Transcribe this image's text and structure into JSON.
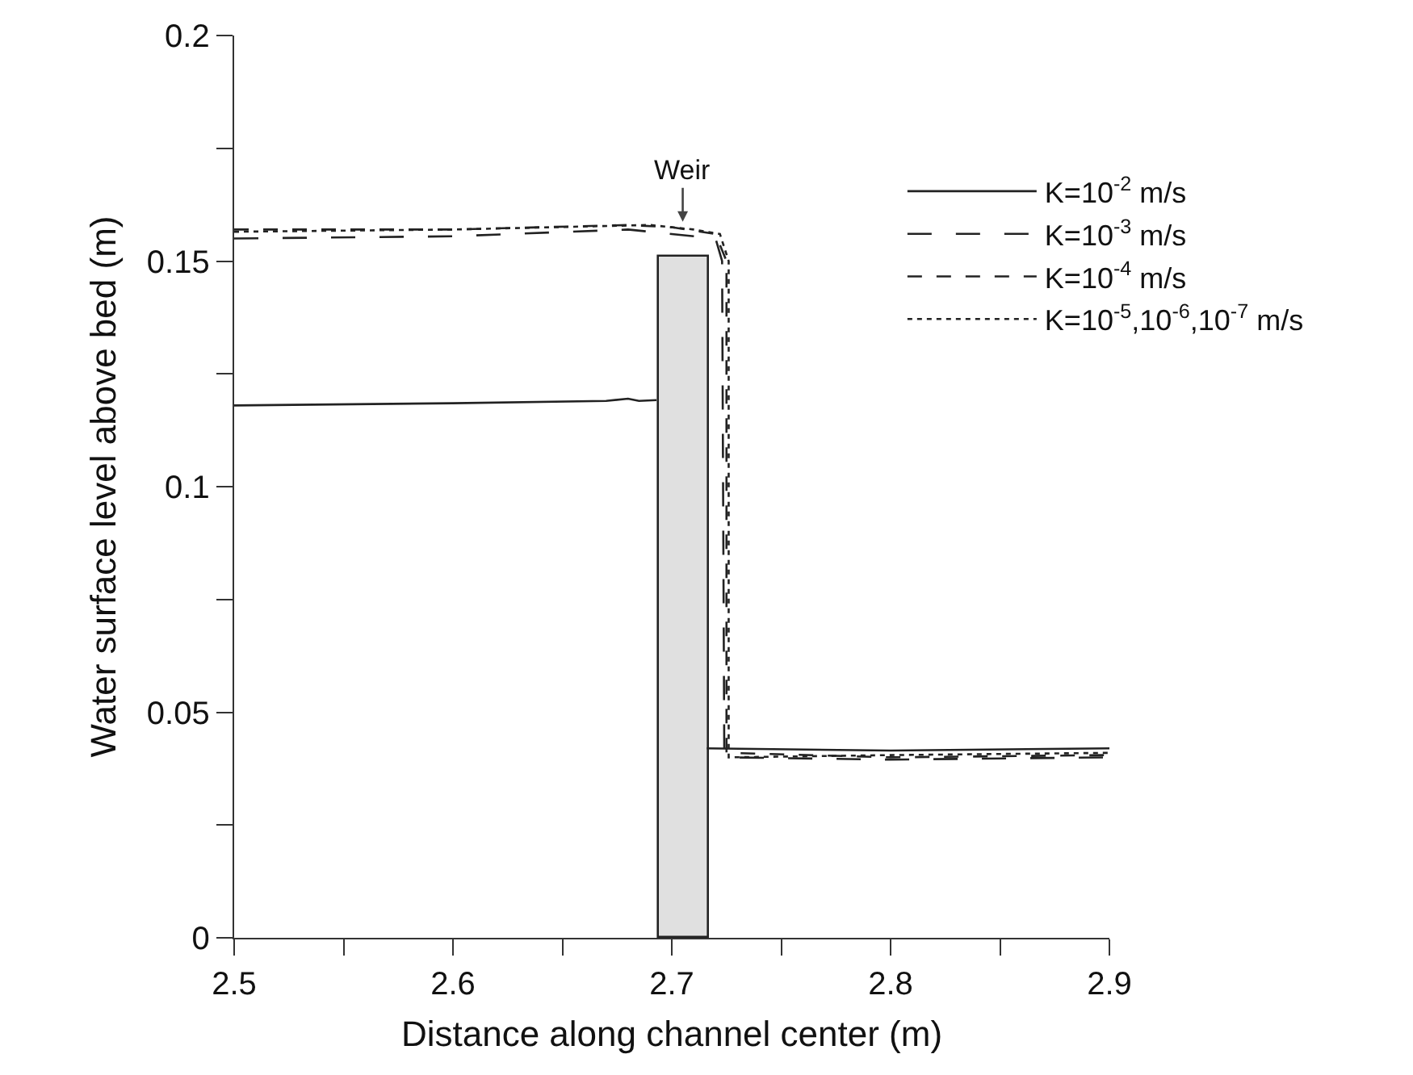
{
  "chart_data": {
    "type": "line",
    "xlabel": "Distance along channel center (m)",
    "ylabel": "Water surface level above bed (m)",
    "xlim": [
      2.5,
      2.9
    ],
    "xticks": [
      2.5,
      2.6,
      2.7,
      2.8,
      2.9
    ],
    "ylim": [
      0,
      0.2
    ],
    "yticks": [
      0,
      0.05,
      0.1,
      0.15,
      0.2
    ],
    "grid": false,
    "legend": "top right",
    "marker": "none",
    "annotations": [
      {
        "text": "Weir",
        "x": 2.705,
        "y": 0.158
      }
    ],
    "series": [
      {
        "name": "K=10$^{-2}$ m/s",
        "color": "#222222",
        "line_style": "solid",
        "x": [
          2.5,
          2.6,
          2.67,
          2.68,
          2.685,
          2.693,
          null,
          2.716,
          2.8,
          2.9
        ],
        "values": [
          0.118,
          0.1185,
          0.119,
          0.1195,
          0.119,
          0.1192,
          null,
          0.042,
          0.0415,
          0.042
        ]
      },
      {
        "name": "K=10$^{-3}$ m/s",
        "color": "#222222",
        "line_style": "longdash",
        "x": [
          2.5,
          2.6,
          2.68,
          2.7,
          2.72,
          2.723,
          2.724,
          2.8,
          2.9
        ],
        "values": [
          0.155,
          0.1555,
          0.157,
          0.156,
          0.155,
          0.15,
          0.04,
          0.0395,
          0.04
        ]
      },
      {
        "name": "K=10$^{-4}$ m/s",
        "color": "#222222",
        "line_style": "dashed",
        "x": [
          2.5,
          2.6,
          2.68,
          2.7,
          2.72,
          2.725,
          2.725,
          2.8,
          2.9
        ],
        "values": [
          0.157,
          0.157,
          0.158,
          0.1575,
          0.156,
          0.15,
          0.041,
          0.04,
          0.0405
        ]
      },
      {
        "name": "K=10$^{-5}$,10$^{-6}$,10$^{-7}$ m/s",
        "color": "#222222",
        "line_style": "dotted",
        "x": [
          2.5,
          2.6,
          2.69,
          2.71,
          2.722,
          2.726,
          2.726,
          2.8,
          2.9
        ],
        "values": [
          0.1565,
          0.157,
          0.158,
          0.157,
          0.156,
          0.15,
          0.04,
          0.0405,
          0.041
        ]
      },
      {
        "type": "bar",
        "color": "#e0e0e0",
        "x": [
          2.7055
        ],
        "values": [
          0.151
        ]
      }
    ]
  }
}
